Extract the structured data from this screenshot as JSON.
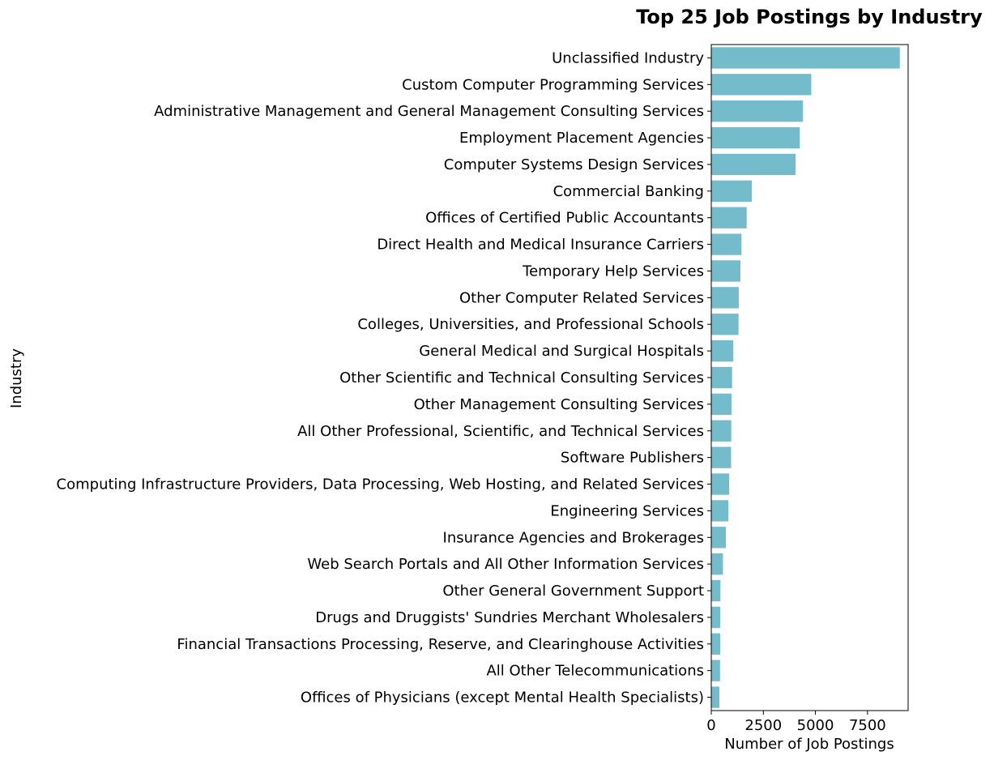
{
  "chart_data": {
    "type": "bar",
    "orientation": "horizontal",
    "title": "Top 25 Job Postings by Industry",
    "xlabel": "Number of Job Postings",
    "ylabel": "Industry",
    "xlim": [
      0,
      9450
    ],
    "xticks": [
      0,
      2500,
      5000,
      7500
    ],
    "grid": false,
    "bar_color": "#74bccb",
    "categories": [
      "Unclassified Industry",
      "Custom Computer Programming Services",
      "Administrative Management and General Management Consulting Services",
      "Employment Placement Agencies",
      "Computer Systems Design Services",
      "Commercial Banking",
      "Offices of Certified Public Accountants",
      "Direct Health and Medical Insurance Carriers",
      "Temporary Help Services",
      "Other Computer Related Services",
      "Colleges, Universities, and Professional Schools",
      "General Medical and Surgical Hospitals",
      "Other Scientific and Technical Consulting Services",
      "Other Management Consulting Services",
      "All Other Professional, Scientific, and Technical Services",
      "Software Publishers",
      "Computing Infrastructure Providers, Data Processing, Web Hosting, and Related Services",
      "Engineering Services",
      "Insurance Agencies and Brokerages",
      "Web Search Portals and All Other Information Services",
      "Other General Government Support",
      "Drugs and Druggists' Sundries Merchant Wholesalers",
      "Financial Transactions Processing, Reserve, and Clearinghouse Activities",
      "All Other Telecommunications",
      "Offices of Physicians (except Mental Health Specialists)"
    ],
    "values": [
      9050,
      4800,
      4400,
      4250,
      4050,
      1950,
      1700,
      1450,
      1400,
      1320,
      1310,
      1050,
      1000,
      970,
      960,
      950,
      860,
      820,
      700,
      560,
      440,
      430,
      430,
      420,
      390
    ]
  }
}
